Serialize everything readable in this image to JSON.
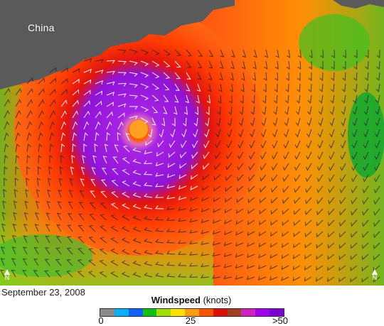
{
  "map": {
    "place_label": "China",
    "north_label": "N",
    "colors": {
      "land": "#5a5a5a",
      "low_wind": "#20c020",
      "mid_wind": "#ff3a00",
      "high_wind": "#a020f0",
      "eye": "#ff7a00"
    }
  },
  "caption": {
    "date": "September 23, 2008"
  },
  "legend": {
    "title_bold": "Windspeed",
    "title_unit": "(knots)",
    "min_label": "0",
    "mid_label": "25",
    "max_label": ">50",
    "swatches": [
      "#8a8a8a",
      "#00b0ff",
      "#1060ff",
      "#10c010",
      "#a0e000",
      "#ffe000",
      "#ffa000",
      "#ff5000",
      "#e01000",
      "#a04020",
      "#d020c0",
      "#a000f0",
      "#7a00d0"
    ]
  }
}
